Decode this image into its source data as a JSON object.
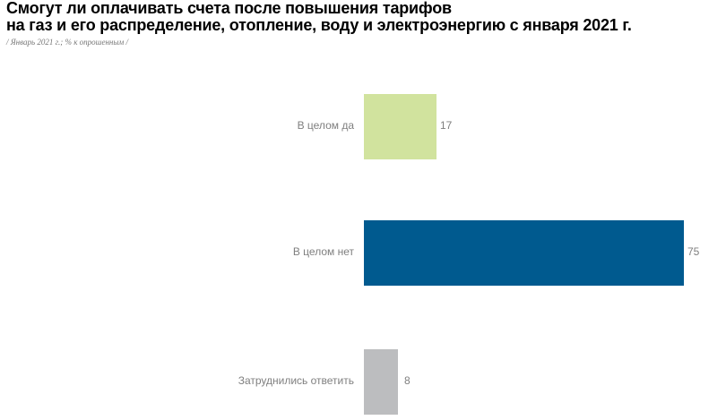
{
  "header": {
    "title_line1": "Смогут ли оплачивать счета после повышения тарифов",
    "title_line2": "на газ и его распределение, отопление, воду и электроэнергию с января 2021 г.",
    "subtitle": "/ Январь 2021 г.; % к опрошенным /"
  },
  "chart_data": {
    "type": "bar",
    "orientation": "horizontal",
    "title": "Смогут ли оплачивать счета после повышения тарифов на газ и его распределение, отопление, воду и электроэнергию с января 2021 г.",
    "subtitle": "/ Январь 2021 г.; % к опрошенным /",
    "categories": [
      "В целом да",
      "В целом нет",
      "Затруднились ответить"
    ],
    "values": [
      17,
      75,
      8
    ],
    "colors": [
      "#d1e39e",
      "#005a8f",
      "#bcbdbf"
    ],
    "xlabel": "",
    "ylabel": "",
    "xlim": [
      0,
      75
    ],
    "grid": false,
    "legend": null
  },
  "bars": [
    {
      "label": "В целом да",
      "value": "17"
    },
    {
      "label": "В целом нет",
      "value": "75"
    },
    {
      "label": "Затруднились ответить",
      "value": "8"
    }
  ]
}
